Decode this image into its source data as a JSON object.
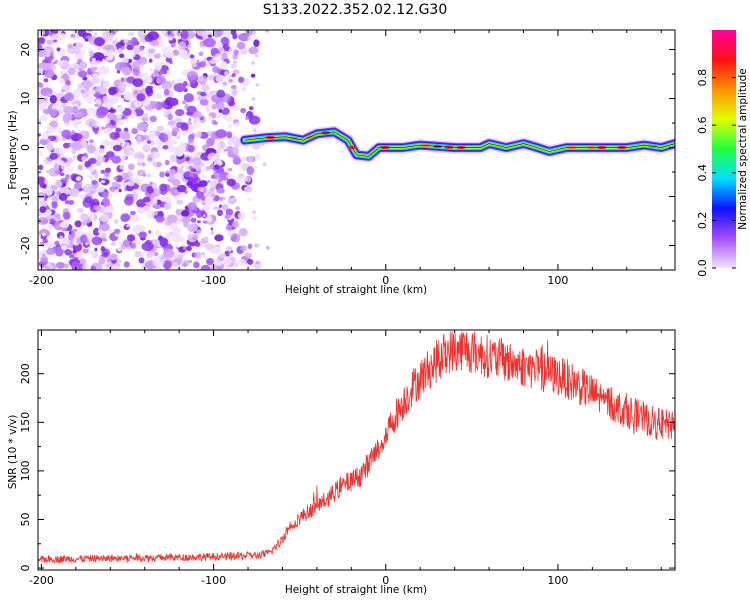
{
  "title": "S133.2022.352.02.12.G30",
  "chart_data": [
    {
      "type": "heatmap",
      "xlabel": "Height of straight line (km)",
      "ylabel": "Frequency (Hz)",
      "xlim": [
        -202,
        168
      ],
      "ylim": [
        -25,
        24
      ],
      "xticks": [
        "-200",
        "-100",
        "0",
        "100"
      ],
      "yticks": [
        "20",
        "10",
        "0",
        "-10",
        "-20"
      ],
      "colorbar": {
        "label": "Normalized spectral amplitude",
        "range": [
          0.0,
          1.0
        ],
        "ticks": [
          "0.0",
          "0.2",
          "0.4",
          "0.6",
          "0.8"
        ],
        "colors": [
          "#f2e4ff",
          "#a54cff",
          "#1010ff",
          "#00e0ff",
          "#20ff40",
          "#e0ff00",
          "#ff9000",
          "#ff1010",
          "#ff00a0"
        ]
      },
      "noise_region_x": [
        -202,
        -80
      ],
      "signal_track": [
        {
          "x": -82,
          "freq": 1.5
        },
        {
          "x": -70,
          "freq": 2.0
        },
        {
          "x": -58,
          "freq": 2.2
        },
        {
          "x": -48,
          "freq": 1.5
        },
        {
          "x": -40,
          "freq": 2.8
        },
        {
          "x": -30,
          "freq": 3.2
        },
        {
          "x": -22,
          "freq": 1.5
        },
        {
          "x": -17,
          "freq": -1.5
        },
        {
          "x": -10,
          "freq": -1.8
        },
        {
          "x": -4,
          "freq": 0.0
        },
        {
          "x": 10,
          "freq": 0.0
        },
        {
          "x": 20,
          "freq": 0.5
        },
        {
          "x": 40,
          "freq": 0.0
        },
        {
          "x": 55,
          "freq": 0.0
        },
        {
          "x": 60,
          "freq": 0.8
        },
        {
          "x": 70,
          "freq": 0.0
        },
        {
          "x": 80,
          "freq": 0.8
        },
        {
          "x": 88,
          "freq": 0.0
        },
        {
          "x": 95,
          "freq": -0.8
        },
        {
          "x": 105,
          "freq": 0.0
        },
        {
          "x": 140,
          "freq": 0.0
        },
        {
          "x": 150,
          "freq": 0.5
        },
        {
          "x": 160,
          "freq": 0.0
        },
        {
          "x": 168,
          "freq": 0.8
        }
      ]
    },
    {
      "type": "line",
      "xlabel": "Height of straight line (km)",
      "ylabel": "SNR (10 * v/v)",
      "xlim": [
        -202,
        168
      ],
      "ylim": [
        -2,
        245
      ],
      "xticks": [
        "-200",
        "-100",
        "0",
        "100"
      ],
      "yticks": [
        "200",
        "150",
        "100",
        "50",
        "0"
      ],
      "line_color": "#f0302c",
      "series": [
        {
          "x": [
            -202,
            -160,
            -120,
            -90,
            -75,
            -68,
            -62,
            -55,
            -45,
            -35,
            -25,
            -15,
            -5,
            5,
            15,
            25,
            35,
            45,
            55,
            65,
            75,
            85,
            95,
            105,
            115,
            125,
            135,
            145,
            155,
            168
          ],
          "values": [
            9,
            10,
            11,
            12,
            13,
            15,
            25,
            45,
            58,
            70,
            85,
            95,
            120,
            155,
            185,
            205,
            222,
            226,
            220,
            215,
            210,
            205,
            200,
            195,
            185,
            175,
            165,
            158,
            150,
            145
          ]
        }
      ]
    }
  ]
}
